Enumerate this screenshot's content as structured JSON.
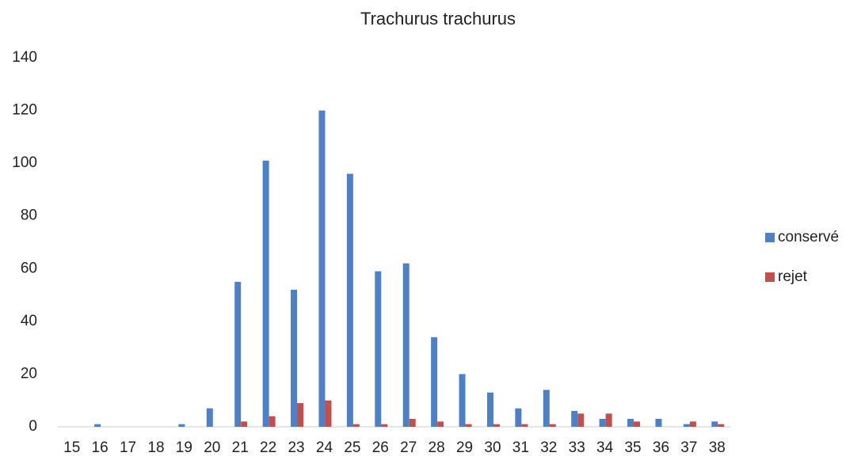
{
  "chart_data": {
    "type": "bar",
    "title": "Trachurus trachurus",
    "categories": [
      "15",
      "16",
      "17",
      "18",
      "19",
      "20",
      "21",
      "22",
      "23",
      "24",
      "25",
      "26",
      "27",
      "28",
      "29",
      "30",
      "31",
      "32",
      "33",
      "34",
      "35",
      "36",
      "37",
      "38"
    ],
    "series": [
      {
        "name": "conservé",
        "color": "#4f7fc4",
        "values": [
          0,
          1,
          0,
          0,
          1,
          7,
          55,
          101,
          52,
          120,
          96,
          59,
          62,
          34,
          20,
          13,
          7,
          14,
          6,
          3,
          3,
          3,
          1,
          2
        ]
      },
      {
        "name": "rejet",
        "color": "#c0504d",
        "values": [
          0,
          0,
          0,
          0,
          0,
          0,
          2,
          4,
          9,
          10,
          1,
          1,
          3,
          2,
          1,
          1,
          1,
          1,
          5,
          5,
          2,
          0,
          2,
          1
        ]
      }
    ],
    "ylim": [
      0,
      140
    ],
    "yticks": [
      0,
      20,
      40,
      60,
      80,
      100,
      120,
      140
    ],
    "grid": false,
    "legend": "right"
  }
}
